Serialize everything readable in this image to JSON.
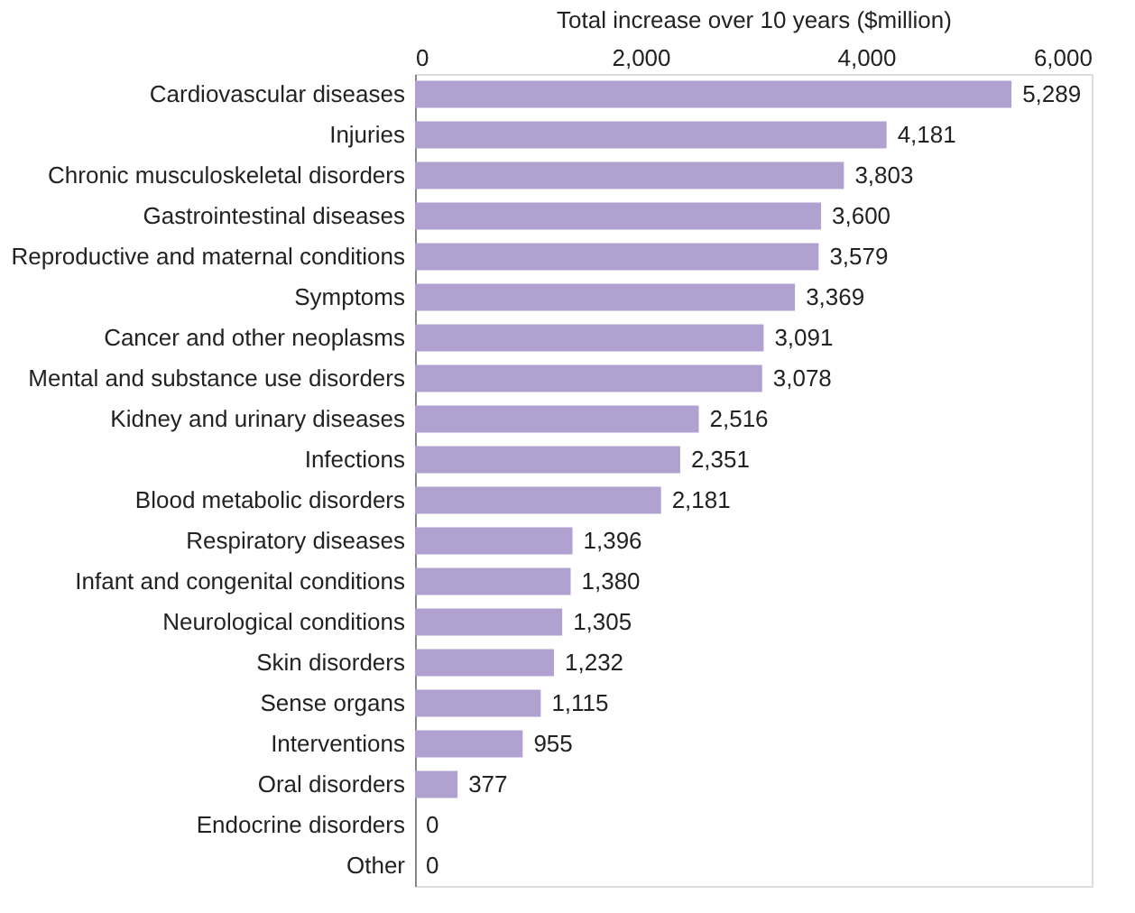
{
  "chart_data": {
    "type": "bar",
    "orientation": "horizontal",
    "xlabel": "Total increase over 10 years ($million)",
    "categories": [
      "Cardiovascular diseases",
      "Injuries",
      "Chronic musculoskeletal disorders",
      "Gastrointestinal diseases",
      "Reproductive and maternal conditions",
      "Symptoms",
      "Cancer and other neoplasms",
      "Mental and substance use disorders",
      "Kidney and urinary diseases",
      "Infections",
      "Blood metabolic disorders",
      "Respiratory diseases",
      "Infant and congenital conditions",
      "Neurological conditions",
      "Skin disorders",
      "Sense organs",
      "Interventions",
      "Oral disorders",
      "Endocrine disorders",
      "Other"
    ],
    "values": [
      5289,
      4181,
      3803,
      3600,
      3579,
      3369,
      3091,
      3078,
      2516,
      2351,
      2181,
      1396,
      1380,
      1305,
      1232,
      1115,
      955,
      377,
      0,
      0
    ],
    "value_labels": [
      "5,289",
      "4,181",
      "3,803",
      "3,600",
      "3,579",
      "3,369",
      "3,091",
      "3,078",
      "2,516",
      "2,351",
      "2,181",
      "1,396",
      "1,380",
      "1,305",
      "1,232",
      "1,115",
      "955",
      "377",
      "0",
      "0"
    ],
    "color": "#b0a1d1",
    "xlim": [
      0,
      6000
    ],
    "xticks": [
      0,
      {
        "value": 2000,
        "label": "2,000"
      },
      {
        "value": 4000,
        "label": "4,000"
      },
      {
        "value": 6000,
        "label": "6,000"
      }
    ],
    "grid": false
  }
}
